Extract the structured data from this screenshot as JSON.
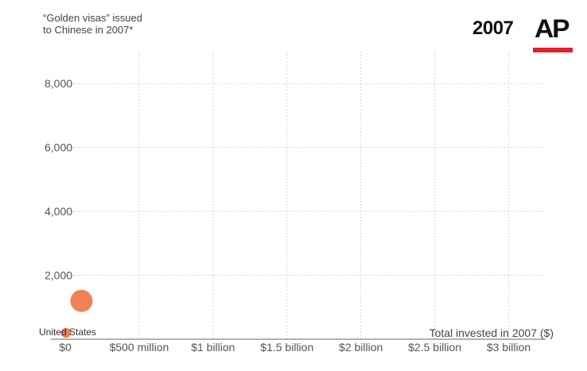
{
  "header": {
    "y_title": "“Golden visas” issued\nto Chinese in 2007*",
    "year": "2007",
    "logo_text": "AP",
    "logo_bar_color": "#e3202b"
  },
  "chart_data": {
    "type": "scatter",
    "title": "",
    "ylabel": "“Golden visas” issued to Chinese in 2007*",
    "xlabel": "Total invested in 2007 ($)",
    "x_ticks": [
      {
        "value": 0,
        "label": "$0"
      },
      {
        "value": 500000000,
        "label": "$500 million"
      },
      {
        "value": 1000000000,
        "label": "$1 billion"
      },
      {
        "value": 1500000000,
        "label": "$1.5 billion"
      },
      {
        "value": 2000000000,
        "label": "$2 billion"
      },
      {
        "value": 2500000000,
        "label": "$2.5 billion"
      },
      {
        "value": 3000000000,
        "label": "$3 billion"
      }
    ],
    "y_ticks": [
      {
        "value": 2000,
        "label": "2,000"
      },
      {
        "value": 4000,
        "label": "4,000"
      },
      {
        "value": 6000,
        "label": "6,000"
      },
      {
        "value": 8000,
        "label": "8,000"
      }
    ],
    "xlim": [
      0,
      3250000000
    ],
    "ylim": [
      0,
      9000
    ],
    "grid": true,
    "bubble_color": "#f07a4f",
    "points": [
      {
        "label": "United States",
        "x": 5000000,
        "y": 200,
        "size": 0.2
      },
      {
        "label": "",
        "x": 110000000,
        "y": 1200,
        "size": 1.0
      }
    ]
  }
}
